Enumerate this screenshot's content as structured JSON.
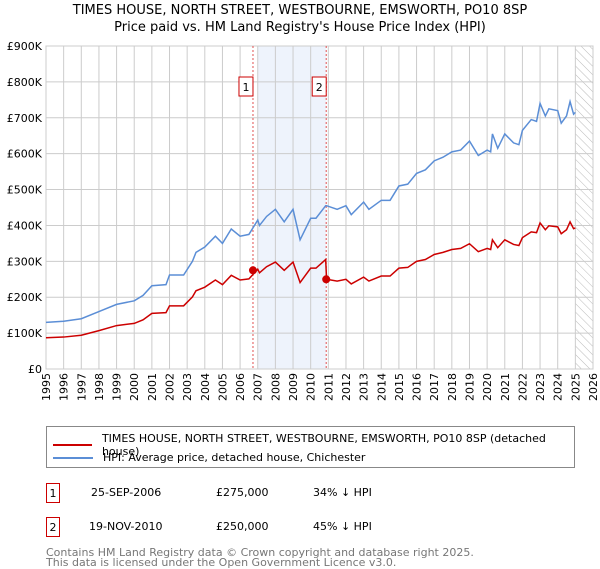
{
  "chart_data": {
    "type": "line",
    "title": "TIMES HOUSE, NORTH STREET, WESTBOURNE, EMSWORTH, PO10 8SP",
    "subtitle": "Price paid vs. HM Land Registry's House Price Index (HPI)",
    "xlim": [
      1995,
      2026
    ],
    "ylim": [
      0,
      900000
    ],
    "yticks": [
      {
        "v": 0,
        "label": "£0"
      },
      {
        "v": 100000,
        "label": "£100K"
      },
      {
        "v": 200000,
        "label": "£200K"
      },
      {
        "v": 300000,
        "label": "£300K"
      },
      {
        "v": 400000,
        "label": "£400K"
      },
      {
        "v": 500000,
        "label": "£500K"
      },
      {
        "v": 600000,
        "label": "£600K"
      },
      {
        "v": 700000,
        "label": "£700K"
      },
      {
        "v": 800000,
        "label": "£800K"
      },
      {
        "v": 900000,
        "label": "£900K"
      }
    ],
    "xticks": [
      "1995",
      "1996",
      "1997",
      "1998",
      "1999",
      "2000",
      "2001",
      "2002",
      "2003",
      "2004",
      "2005",
      "2006",
      "2007",
      "2008",
      "2009",
      "2010",
      "2011",
      "2012",
      "2013",
      "2014",
      "2015",
      "2016",
      "2017",
      "2018",
      "2019",
      "2020",
      "2021",
      "2022",
      "2023",
      "2024",
      "2025",
      "2026"
    ],
    "grid": true,
    "shaded_range": [
      2007.0,
      2010.88
    ],
    "forecast_hatch_from": 2025.0,
    "series": [
      {
        "name": "TIMES HOUSE, NORTH STREET, WESTBOURNE, EMSWORTH, PO10 8SP (detached house)",
        "color": "#cc0000",
        "x": [
          1995,
          1996,
          1997,
          1998,
          1999,
          2000,
          2000.5,
          2001,
          2001.8,
          2002,
          2002.8,
          2003.3,
          2003.5,
          2004,
          2004.6,
          2005,
          2005.5,
          2006,
          2006.5,
          2007,
          2007.1,
          2007.5,
          2008,
          2008.5,
          2009,
          2009.4,
          2010,
          2010.3,
          2010.85,
          2010.9,
          2011.5,
          2012,
          2012.3,
          2013,
          2013.3,
          2014,
          2014.5,
          2015,
          2015.5,
          2016,
          2016.5,
          2017,
          2017.5,
          2018,
          2018.5,
          2019,
          2019.5,
          2020,
          2020.2,
          2020.3,
          2020.6,
          2021,
          2021.5,
          2021.8,
          2022,
          2022.5,
          2022.8,
          2023,
          2023.3,
          2023.5,
          2024,
          2024.2,
          2024.5,
          2024.7,
          2024.9,
          2025
        ],
        "y": [
          87,
          89,
          94,
          107,
          121,
          127,
          137,
          155,
          157,
          176,
          176,
          201,
          218,
          228,
          248,
          235,
          261,
          248,
          251,
          278,
          268,
          285,
          298,
          275,
          298,
          241,
          281,
          281,
          305,
          250,
          245,
          250,
          237,
          256,
          245,
          259,
          259,
          281,
          283,
          300,
          305,
          319,
          325,
          333,
          336,
          349,
          327,
          336,
          333,
          360,
          338,
          360,
          347,
          344,
          366,
          382,
          380,
          407,
          388,
          399,
          396,
          377,
          388,
          410,
          391,
          393
        ]
      },
      {
        "name": "HPI: Average price, detached house, Chichester",
        "color": "#5b8ed6",
        "x": [
          1995,
          1996,
          1997,
          1998,
          1999,
          2000,
          2000.5,
          2001,
          2001.8,
          2002,
          2002.8,
          2003.3,
          2003.5,
          2004,
          2004.6,
          2005,
          2005.5,
          2006,
          2006.5,
          2007,
          2007.1,
          2007.5,
          2008,
          2008.5,
          2009,
          2009.4,
          2010,
          2010.3,
          2010.85,
          2010.9,
          2011.5,
          2012,
          2012.3,
          2013,
          2013.3,
          2014,
          2014.5,
          2015,
          2015.5,
          2016,
          2016.5,
          2017,
          2017.5,
          2018,
          2018.5,
          2019,
          2019.5,
          2020,
          2020.2,
          2020.3,
          2020.6,
          2021,
          2021.5,
          2021.8,
          2022,
          2022.5,
          2022.8,
          2023,
          2023.3,
          2023.5,
          2024,
          2024.2,
          2024.5,
          2024.7,
          2024.9,
          2025
        ],
        "y": [
          130,
          133,
          140,
          160,
          180,
          190,
          205,
          232,
          235,
          262,
          262,
          300,
          325,
          340,
          370,
          350,
          390,
          370,
          375,
          415,
          400,
          425,
          445,
          410,
          445,
          360,
          420,
          420,
          455,
          455,
          445,
          455,
          430,
          465,
          445,
          470,
          470,
          510,
          515,
          545,
          555,
          580,
          590,
          605,
          610,
          635,
          595,
          610,
          605,
          655,
          615,
          655,
          630,
          625,
          665,
          695,
          690,
          740,
          705,
          725,
          720,
          685,
          705,
          745,
          710,
          715
        ]
      }
    ],
    "y_units": "thousands GBP",
    "sales": [
      {
        "id": "1",
        "x": 2006.73,
        "y": 275,
        "date": "25-SEP-2006",
        "price": "£275,000",
        "hpi": "34% ↓ HPI"
      },
      {
        "id": "2",
        "x": 2010.88,
        "y": 250,
        "date": "19-NOV-2010",
        "price": "£250,000",
        "hpi": "45% ↓ HPI"
      }
    ]
  },
  "footer": {
    "line1": "Contains HM Land Registry data © Crown copyright and database right 2025.",
    "line2": "This data is licensed under the Open Government Licence v3.0."
  }
}
